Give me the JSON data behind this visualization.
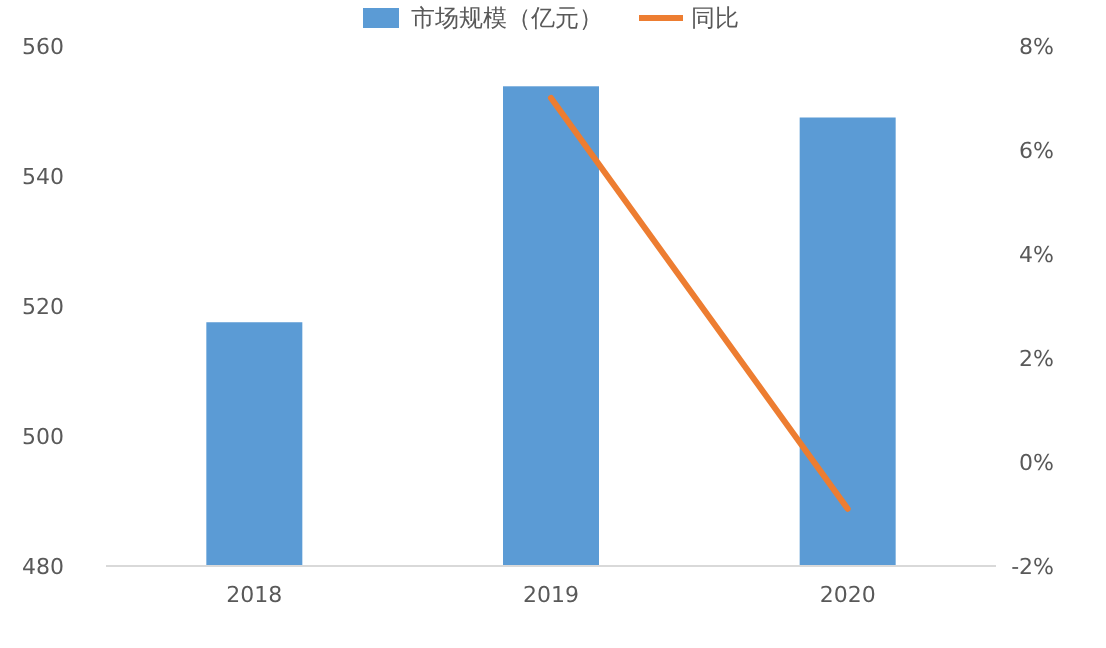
{
  "chart_data": {
    "type": "bar",
    "categories": [
      "2018",
      "2019",
      "2020"
    ],
    "series": [
      {
        "name": "市场规模（亿元）",
        "color": "#5b9bd5",
        "values": [
          517.5,
          553.8,
          549
        ]
      },
      {
        "name": "同比",
        "type": "line",
        "axis": "y2",
        "color": "#ed7d31",
        "values": [
          null,
          7.0,
          -0.9
        ]
      }
    ],
    "ylim": [
      480,
      560
    ],
    "yticks": [
      480,
      500,
      520,
      540,
      560
    ],
    "y2lim": [
      -2,
      8
    ],
    "y2ticks": [
      {
        "value": -2,
        "label": "-2%"
      },
      {
        "value": 0,
        "label": "0%"
      },
      {
        "value": 2,
        "label": "2%"
      },
      {
        "value": 4,
        "label": "4%"
      },
      {
        "value": 6,
        "label": "6%"
      },
      {
        "value": 8,
        "label": "8%"
      }
    ],
    "legend": "top"
  }
}
